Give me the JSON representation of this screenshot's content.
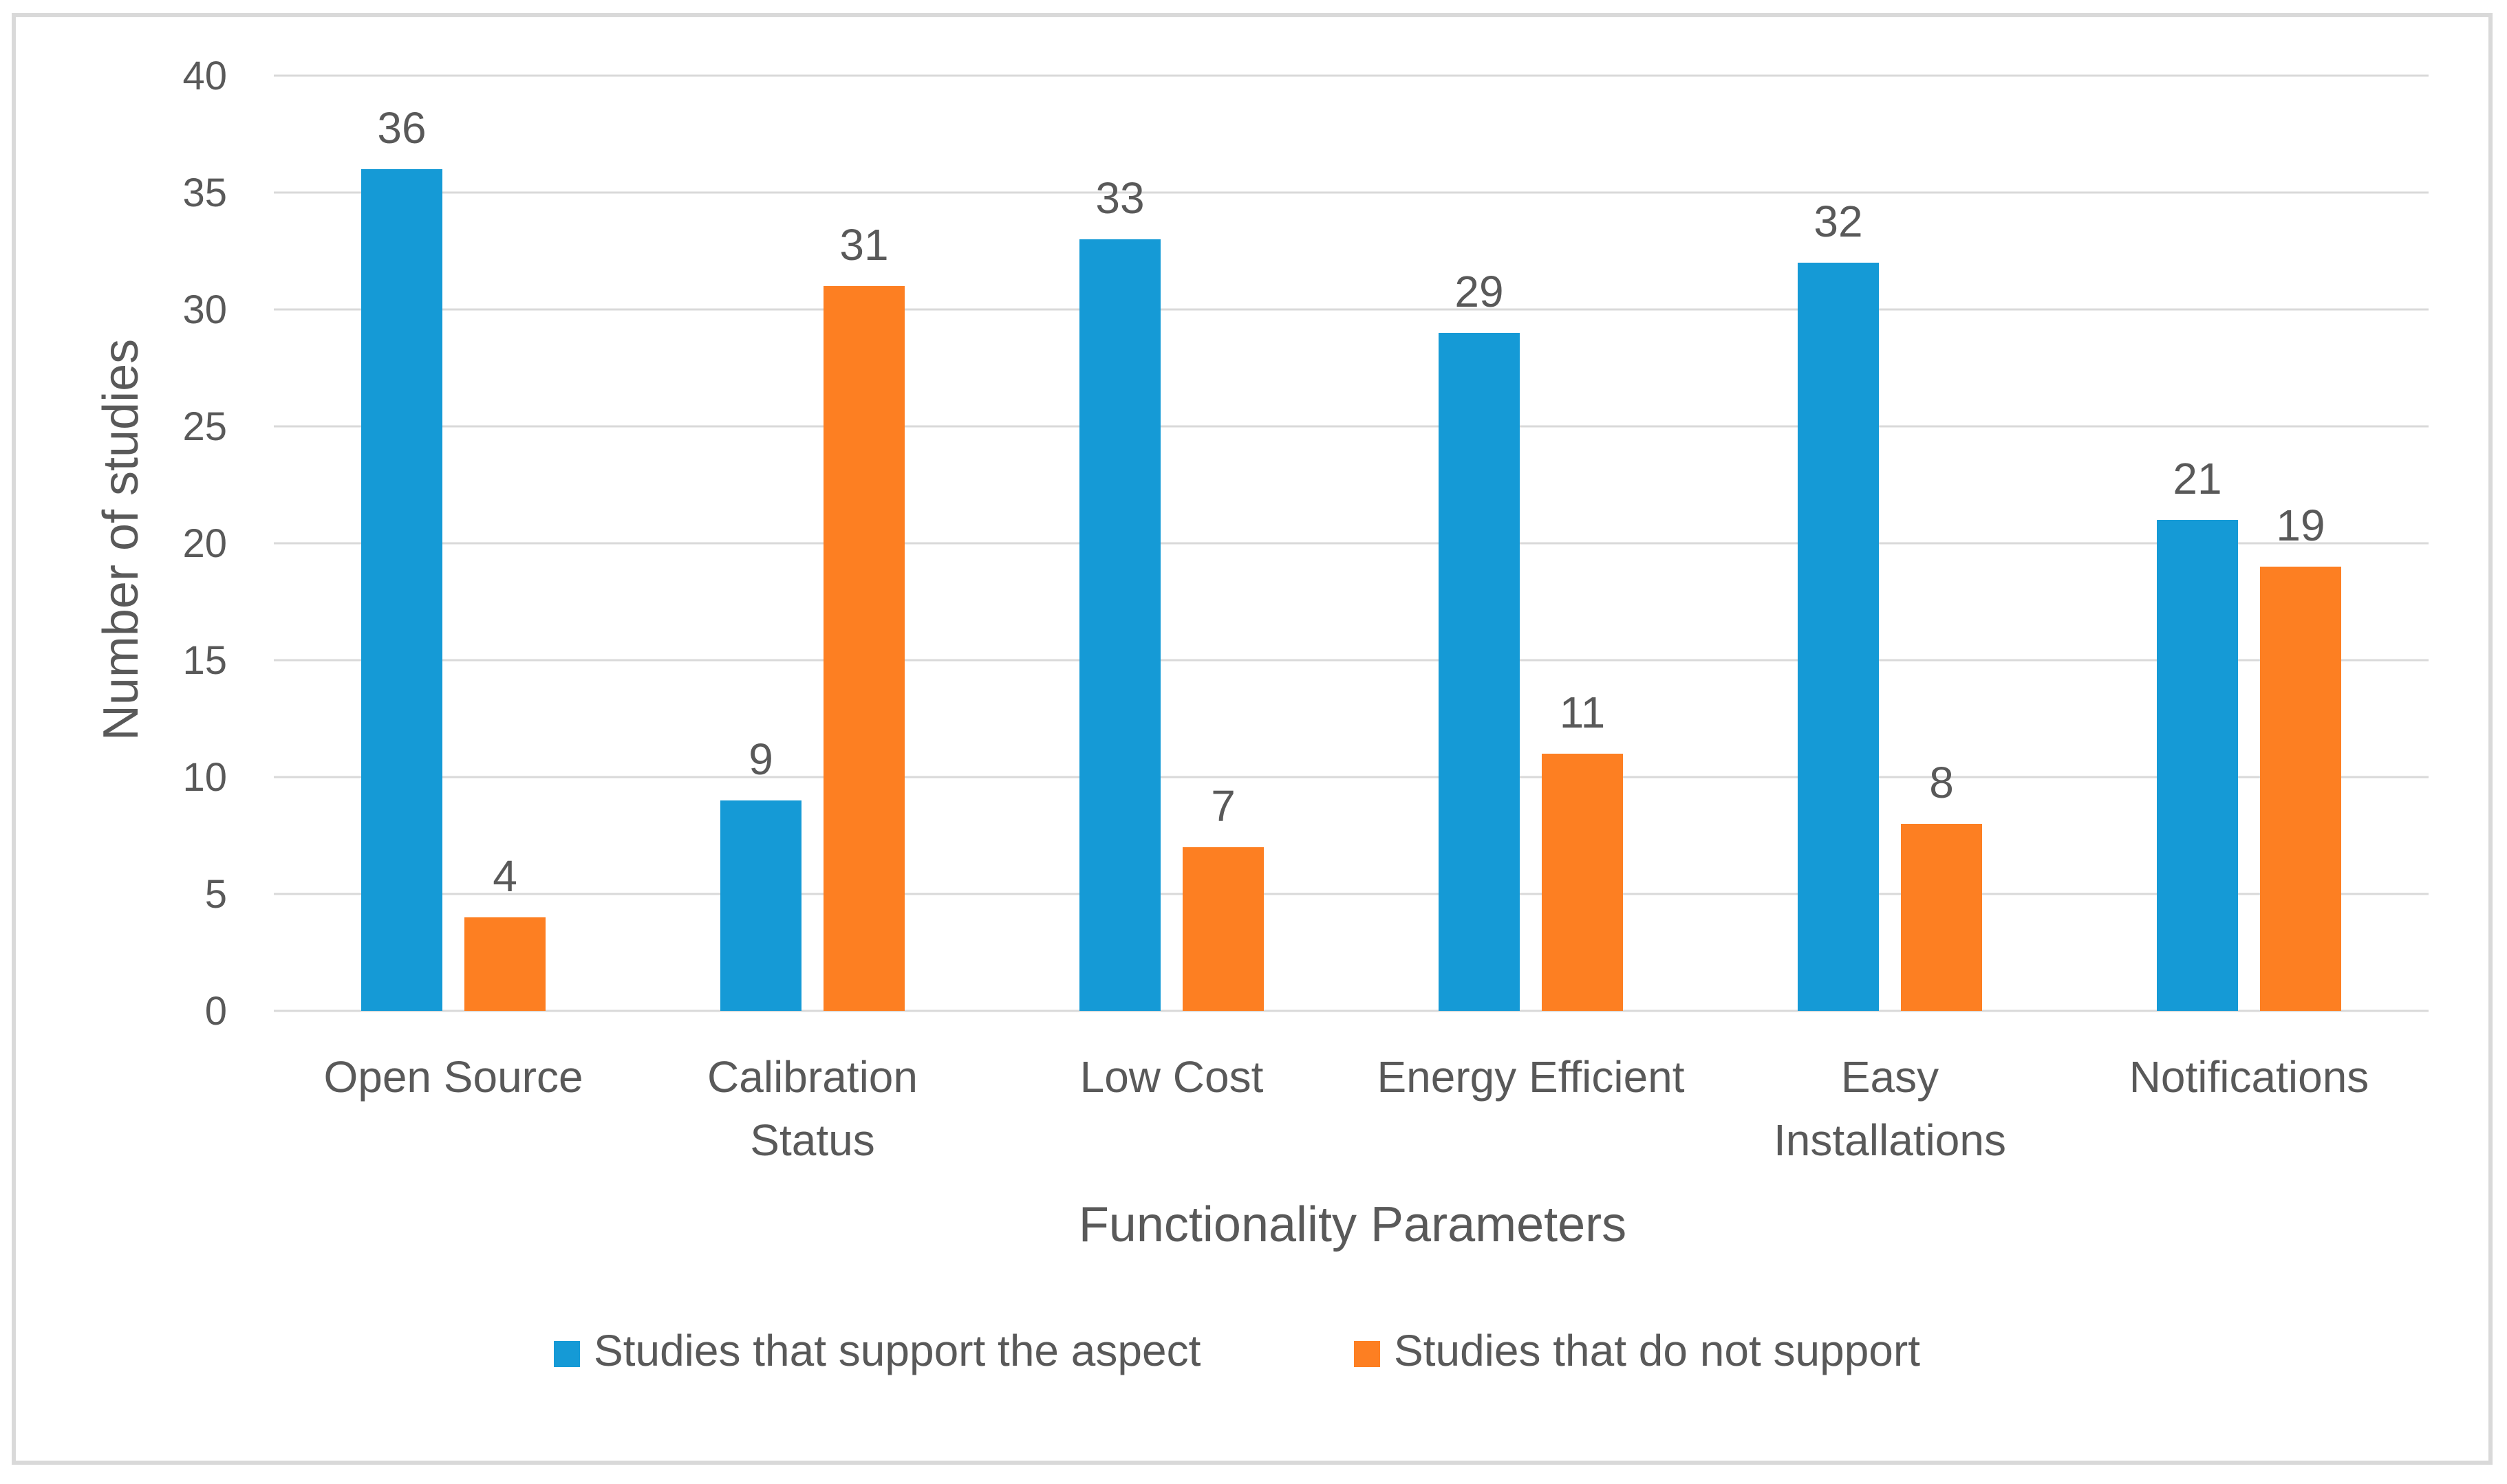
{
  "chart_data": {
    "type": "bar",
    "title": "",
    "xlabel": "Functionality Parameters",
    "ylabel": "Number of studies",
    "ylim": [
      0,
      40
    ],
    "ytick_step": 5,
    "yticks": [
      "0",
      "5",
      "10",
      "15",
      "20",
      "25",
      "30",
      "35",
      "40"
    ],
    "grid": true,
    "legend_position": "bottom",
    "categories": [
      [
        "Open Source"
      ],
      [
        "Calibration",
        "Status"
      ],
      [
        "Low Cost"
      ],
      [
        "Energy Efficient"
      ],
      [
        "Easy",
        "Installations"
      ],
      [
        "Notifications"
      ]
    ],
    "series": [
      {
        "name": "Studies that support the aspect",
        "color": "#159ad6",
        "values": [
          36,
          9,
          33,
          29,
          32,
          21
        ],
        "labels": [
          "36",
          "9",
          "33",
          "29",
          "32",
          "21"
        ]
      },
      {
        "name": "Studies that do not support",
        "color": "#fd7f22",
        "values": [
          4,
          31,
          7,
          11,
          8,
          19
        ],
        "labels": [
          "4",
          "31",
          "7",
          "11",
          "8",
          "19"
        ]
      }
    ]
  }
}
